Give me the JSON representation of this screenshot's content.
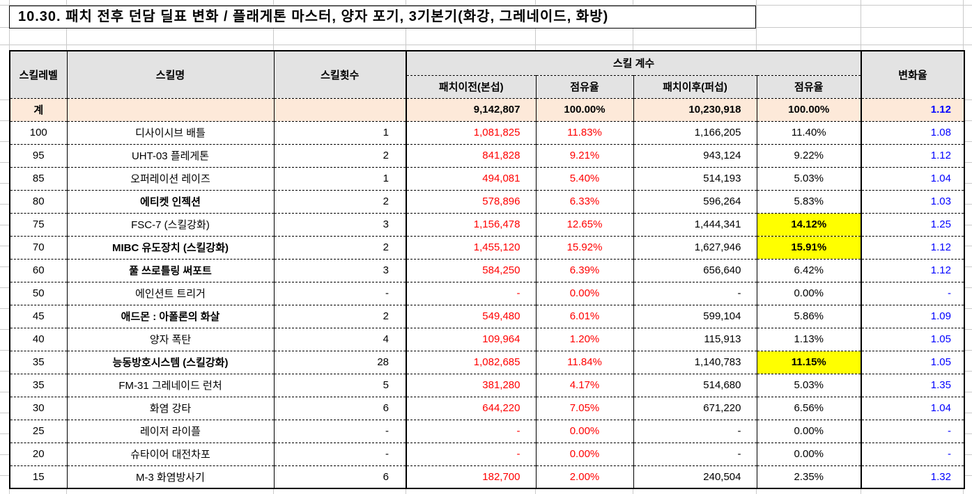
{
  "title": "10.30. 패치 전후 던담 딜표 변화 / 플래게톤 마스터, 양자 포기, 3기본기(화강, 그레네이드, 화방)",
  "colors": {
    "negative_red": "#ff0000",
    "change_blue": "#0000ff",
    "highlight_yellow": "#ffff00",
    "header_bg": "#e3e3e3",
    "total_row_bg": "#fde9d9",
    "gridline_gray": "#c9c9c9"
  },
  "table": {
    "headers": {
      "skill_level": "스킬레벨",
      "skill_name": "스킬명",
      "skill_count": "스킬횟수",
      "skill_coeff_group": "스킬 계수",
      "pre_patch": "패치이전(본섭)",
      "pre_share": "점유율",
      "post_patch": "패치이후(퍼섭)",
      "post_share": "점유율",
      "change_rate": "변화율"
    },
    "total_row": {
      "level": "계",
      "name": "",
      "count": "",
      "pre": "9,142,807",
      "pre_share": "100.00%",
      "post": "10,230,918",
      "post_share": "100.00%",
      "change": "1.12"
    },
    "rows": [
      {
        "level": "100",
        "name": "디사이시브 배틀",
        "name_bold": false,
        "count": "1",
        "pre": "1,081,825",
        "pre_share": "11.83%",
        "post": "1,166,205",
        "post_share": "11.40%",
        "post_share_hl": false,
        "change": "1.08"
      },
      {
        "level": "95",
        "name": "UHT-03 플레게톤",
        "name_bold": false,
        "count": "2",
        "pre": "841,828",
        "pre_share": "9.21%",
        "post": "943,124",
        "post_share": "9.22%",
        "post_share_hl": false,
        "change": "1.12"
      },
      {
        "level": "85",
        "name": "오퍼레이션 레이즈",
        "name_bold": false,
        "count": "1",
        "pre": "494,081",
        "pre_share": "5.40%",
        "post": "514,193",
        "post_share": "5.03%",
        "post_share_hl": false,
        "change": "1.04"
      },
      {
        "level": "80",
        "name": "에티켓 인젝션",
        "name_bold": true,
        "count": "2",
        "pre": "578,896",
        "pre_share": "6.33%",
        "post": "596,264",
        "post_share": "5.83%",
        "post_share_hl": false,
        "change": "1.03"
      },
      {
        "level": "75",
        "name": "FSC-7 (스킬강화)",
        "name_bold": false,
        "count": "3",
        "pre": "1,156,478",
        "pre_share": "12.65%",
        "post": "1,444,341",
        "post_share": "14.12%",
        "post_share_hl": true,
        "change": "1.25"
      },
      {
        "level": "70",
        "name": "MIBC 유도장치 (스킬강화)",
        "name_bold": true,
        "count": "2",
        "pre": "1,455,120",
        "pre_share": "15.92%",
        "post": "1,627,946",
        "post_share": "15.91%",
        "post_share_hl": true,
        "change": "1.12"
      },
      {
        "level": "60",
        "name": "풀 쓰로틀링 써포트",
        "name_bold": true,
        "count": "3",
        "pre": "584,250",
        "pre_share": "6.39%",
        "post": "656,640",
        "post_share": "6.42%",
        "post_share_hl": false,
        "change": "1.12"
      },
      {
        "level": "50",
        "name": "에인션트 트리거",
        "name_bold": false,
        "count": "-",
        "pre": "-",
        "pre_share": "0.00%",
        "post": "-",
        "post_share": "0.00%",
        "post_share_hl": false,
        "change": "-"
      },
      {
        "level": "45",
        "name": "애드몬 : 아폴론의 화살",
        "name_bold": true,
        "count": "2",
        "pre": "549,480",
        "pre_share": "6.01%",
        "post": "599,104",
        "post_share": "5.86%",
        "post_share_hl": false,
        "change": "1.09"
      },
      {
        "level": "40",
        "name": "양자 폭탄",
        "name_bold": false,
        "count": "4",
        "pre": "109,964",
        "pre_share": "1.20%",
        "post": "115,913",
        "post_share": "1.13%",
        "post_share_hl": false,
        "change": "1.05"
      },
      {
        "level": "35",
        "name": "능동방호시스템 (스킬강화)",
        "name_bold": true,
        "count": "28",
        "pre": "1,082,685",
        "pre_share": "11.84%",
        "post": "1,140,783",
        "post_share": "11.15%",
        "post_share_hl": true,
        "change": "1.05"
      },
      {
        "level": "35",
        "name": "FM-31 그레네이드 런처",
        "name_bold": false,
        "count": "5",
        "pre": "381,280",
        "pre_share": "4.17%",
        "post": "514,680",
        "post_share": "5.03%",
        "post_share_hl": false,
        "change": "1.35"
      },
      {
        "level": "30",
        "name": "화염 강타",
        "name_bold": false,
        "count": "6",
        "pre": "644,220",
        "pre_share": "7.05%",
        "post": "671,220",
        "post_share": "6.56%",
        "post_share_hl": false,
        "change": "1.04"
      },
      {
        "level": "25",
        "name": "레이저 라이플",
        "name_bold": false,
        "count": "-",
        "pre": "-",
        "pre_share": "0.00%",
        "post": "-",
        "post_share": "0.00%",
        "post_share_hl": false,
        "change": "-"
      },
      {
        "level": "20",
        "name": "슈타이어 대전차포",
        "name_bold": false,
        "count": "-",
        "pre": "-",
        "pre_share": "0.00%",
        "post": "-",
        "post_share": "0.00%",
        "post_share_hl": false,
        "change": "-"
      },
      {
        "level": "15",
        "name": "M-3 화염방사기",
        "name_bold": false,
        "count": "6",
        "pre": "182,700",
        "pre_share": "2.00%",
        "post": "240,504",
        "post_share": "2.35%",
        "post_share_hl": false,
        "change": "1.32"
      }
    ]
  }
}
